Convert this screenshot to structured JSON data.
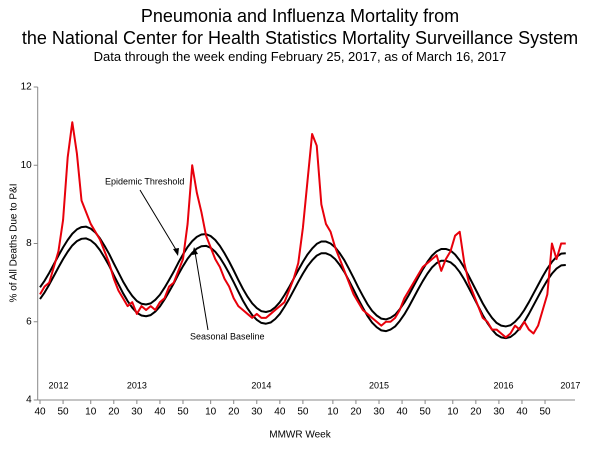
{
  "chart_data": {
    "type": "line",
    "title": [
      "Pneumonia and Influenza Mortality from",
      "the National Center for Health Statistics Mortality Surveillance System"
    ],
    "subtitle": "Data through the week ending February 25, 2017, as of March 16, 2017",
    "x_label": "MMWR Week",
    "y_label": "% of All Deaths Due to P&I",
    "xlim": [
      -1,
      232
    ],
    "ylim": [
      4,
      12
    ],
    "yticks": [
      4,
      6,
      8,
      10,
      12
    ],
    "xticks": [
      {
        "value": 0,
        "label": "40"
      },
      {
        "value": 10,
        "label": "50"
      },
      {
        "value": 22,
        "label": "10"
      },
      {
        "value": 32,
        "label": "20"
      },
      {
        "value": 42,
        "label": "30"
      },
      {
        "value": 52,
        "label": "40"
      },
      {
        "value": 62,
        "label": "50"
      },
      {
        "value": 74,
        "label": "10"
      },
      {
        "value": 84,
        "label": "20"
      },
      {
        "value": 94,
        "label": "30"
      },
      {
        "value": 104,
        "label": "40"
      },
      {
        "value": 114,
        "label": "50"
      },
      {
        "value": 127,
        "label": "10"
      },
      {
        "value": 137,
        "label": "20"
      },
      {
        "value": 147,
        "label": "30"
      },
      {
        "value": 157,
        "label": "40"
      },
      {
        "value": 167,
        "label": "50"
      },
      {
        "value": 179,
        "label": "10"
      },
      {
        "value": 189,
        "label": "20"
      },
      {
        "value": 199,
        "label": "30"
      },
      {
        "value": 209,
        "label": "40"
      },
      {
        "value": 219,
        "label": "50"
      }
    ],
    "year_labels": [
      {
        "value": 8,
        "label": "2012"
      },
      {
        "value": 42,
        "label": "2013"
      },
      {
        "value": 96,
        "label": "2014"
      },
      {
        "value": 147,
        "label": "2015"
      },
      {
        "value": 201,
        "label": "2016"
      },
      {
        "value": 230,
        "label": "2017"
      }
    ],
    "x": [
      0,
      2,
      4,
      6,
      8,
      10,
      12,
      14,
      16,
      18,
      20,
      22,
      24,
      26,
      28,
      30,
      32,
      34,
      36,
      38,
      40,
      42,
      44,
      46,
      48,
      50,
      52,
      54,
      56,
      58,
      60,
      62,
      64,
      66,
      68,
      70,
      72,
      74,
      76,
      78,
      80,
      82,
      84,
      86,
      88,
      90,
      92,
      94,
      96,
      98,
      100,
      102,
      104,
      106,
      108,
      110,
      112,
      114,
      116,
      118,
      120,
      122,
      124,
      126,
      128,
      130,
      132,
      134,
      136,
      138,
      140,
      142,
      144,
      146,
      148,
      150,
      152,
      154,
      156,
      158,
      160,
      162,
      164,
      166,
      168,
      170,
      172,
      174,
      176,
      178,
      180,
      182,
      184,
      186,
      188,
      190,
      192,
      194,
      196,
      198,
      200,
      202,
      204,
      206,
      208,
      210,
      212,
      214,
      216,
      218,
      220,
      222,
      224,
      226,
      228
    ],
    "series": [
      {
        "color": "#e8000b",
        "width": 2,
        "values": [
          6.7,
          6.9,
          7.0,
          7.4,
          7.8,
          8.6,
          10.2,
          11.1,
          10.3,
          9.1,
          8.8,
          8.5,
          8.3,
          8.1,
          7.8,
          7.5,
          7.1,
          6.8,
          6.6,
          6.4,
          6.5,
          6.2,
          6.4,
          6.3,
          6.4,
          6.3,
          6.5,
          6.6,
          6.9,
          7.0,
          7.3,
          7.6,
          8.5,
          10.0,
          9.3,
          8.8,
          8.2,
          7.9,
          7.6,
          7.4,
          7.1,
          6.9,
          6.6,
          6.4,
          6.3,
          6.2,
          6.1,
          6.2,
          6.1,
          6.1,
          6.2,
          6.3,
          6.4,
          6.5,
          6.8,
          7.1,
          7.5,
          8.4,
          9.6,
          10.8,
          10.5,
          9.0,
          8.5,
          8.3,
          7.9,
          7.6,
          7.3,
          7.0,
          6.7,
          6.5,
          6.3,
          6.2,
          6.1,
          6.0,
          5.9,
          6.0,
          6.0,
          6.1,
          6.3,
          6.6,
          6.8,
          7.0,
          7.2,
          7.4,
          7.5,
          7.6,
          7.7,
          7.3,
          7.6,
          7.8,
          8.2,
          8.3,
          7.5,
          7.0,
          6.7,
          6.4,
          6.1,
          6.0,
          5.8,
          5.8,
          5.7,
          5.6,
          5.7,
          5.9,
          5.8,
          6.0,
          5.8,
          5.7,
          5.9,
          6.3,
          6.7,
          8.0,
          7.6,
          8.0,
          8.0
        ]
      },
      {
        "name": "Epidemic Threshold",
        "color": "#000000",
        "width": 2,
        "values": [
          6.88,
          7.05,
          7.25,
          7.47,
          7.69,
          7.9,
          8.09,
          8.25,
          8.36,
          8.42,
          8.43,
          8.38,
          8.28,
          8.13,
          7.94,
          7.73,
          7.49,
          7.26,
          7.03,
          6.83,
          6.66,
          6.53,
          6.46,
          6.44,
          6.47,
          6.56,
          6.69,
          6.87,
          7.07,
          7.28,
          7.51,
          7.72,
          7.91,
          8.06,
          8.17,
          8.23,
          8.24,
          8.19,
          8.09,
          7.94,
          7.75,
          7.54,
          7.31,
          7.07,
          6.84,
          6.64,
          6.47,
          6.35,
          6.27,
          6.25,
          6.28,
          6.37,
          6.5,
          6.68,
          6.88,
          7.1,
          7.32,
          7.53,
          7.72,
          7.87,
          7.99,
          8.05,
          8.05,
          8.0,
          7.9,
          7.75,
          7.57,
          7.35,
          7.12,
          6.88,
          6.66,
          6.45,
          6.28,
          6.16,
          6.08,
          6.06,
          6.1,
          6.18,
          6.32,
          6.49,
          6.69,
          6.91,
          7.13,
          7.34,
          7.53,
          7.69,
          7.8,
          7.86,
          7.86,
          7.82,
          7.72,
          7.57,
          7.38,
          7.16,
          6.93,
          6.7,
          6.47,
          6.27,
          6.1,
          5.97,
          5.9,
          5.88,
          5.91,
          6.0,
          6.13,
          6.3,
          6.5,
          6.72,
          6.94,
          7.16,
          7.36,
          7.53,
          7.66,
          7.74,
          7.75
        ]
      },
      {
        "name": "Seasonal Baseline",
        "color": "#000000",
        "width": 2,
        "values": [
          6.58,
          6.75,
          6.95,
          7.17,
          7.39,
          7.6,
          7.79,
          7.95,
          8.06,
          8.12,
          8.13,
          8.08,
          7.98,
          7.83,
          7.64,
          7.43,
          7.19,
          6.96,
          6.73,
          6.53,
          6.36,
          6.23,
          6.16,
          6.14,
          6.17,
          6.26,
          6.39,
          6.57,
          6.77,
          6.98,
          7.21,
          7.42,
          7.61,
          7.76,
          7.87,
          7.93,
          7.94,
          7.89,
          7.79,
          7.64,
          7.45,
          7.24,
          7.01,
          6.77,
          6.54,
          6.34,
          6.17,
          6.05,
          5.97,
          5.95,
          5.98,
          6.07,
          6.2,
          6.38,
          6.58,
          6.8,
          7.02,
          7.23,
          7.42,
          7.57,
          7.69,
          7.75,
          7.75,
          7.7,
          7.6,
          7.45,
          7.27,
          7.05,
          6.82,
          6.58,
          6.36,
          6.15,
          5.98,
          5.86,
          5.78,
          5.76,
          5.8,
          5.88,
          6.02,
          6.19,
          6.39,
          6.61,
          6.83,
          7.04,
          7.23,
          7.39,
          7.5,
          7.56,
          7.56,
          7.52,
          7.42,
          7.27,
          7.08,
          6.86,
          6.63,
          6.4,
          6.17,
          5.97,
          5.8,
          5.67,
          5.6,
          5.58,
          5.61,
          5.7,
          5.83,
          6.0,
          6.2,
          6.42,
          6.64,
          6.86,
          7.06,
          7.23,
          7.36,
          7.44,
          7.45
        ]
      }
    ]
  }
}
